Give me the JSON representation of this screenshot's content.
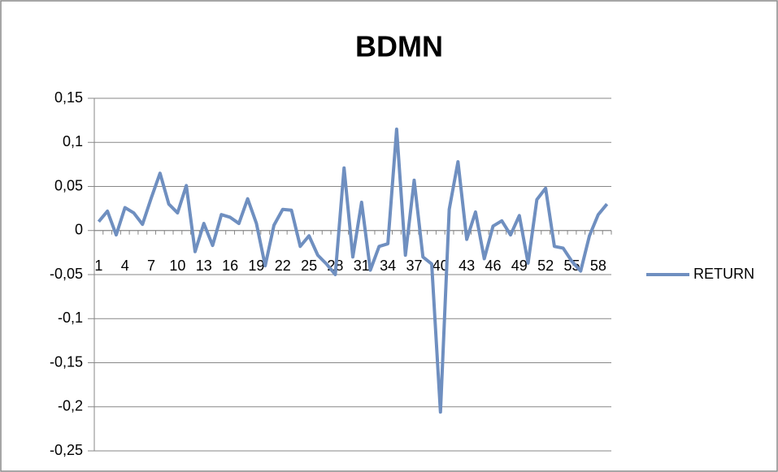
{
  "chart_data": {
    "type": "line",
    "title": "BDMN",
    "categories": [
      1,
      null,
      null,
      4,
      null,
      null,
      7,
      null,
      null,
      10,
      null,
      null,
      13,
      null,
      null,
      16,
      null,
      null,
      19,
      null,
      null,
      22,
      null,
      null,
      25,
      null,
      null,
      28,
      null,
      null,
      31,
      null,
      null,
      34,
      null,
      null,
      37,
      null,
      null,
      40,
      null,
      null,
      43,
      null,
      null,
      46,
      null,
      null,
      49,
      null,
      null,
      52,
      null,
      null,
      55,
      null,
      null,
      58,
      null
    ],
    "series": [
      {
        "name": "RETURN",
        "color": "#6f8fc0",
        "values": [
          0.01,
          0.022,
          -0.005,
          0.026,
          0.02,
          0.007,
          0.037,
          0.065,
          0.03,
          0.02,
          0.051,
          -0.024,
          0.008,
          -0.017,
          0.018,
          0.015,
          0.008,
          0.036,
          0.008,
          -0.04,
          0.006,
          0.024,
          0.023,
          -0.018,
          -0.006,
          -0.028,
          -0.038,
          -0.05,
          0.071,
          -0.03,
          0.032,
          -0.045,
          -0.018,
          -0.015,
          0.115,
          -0.028,
          0.057,
          -0.03,
          -0.038,
          -0.206,
          0.024,
          0.078,
          -0.01,
          0.021,
          -0.032,
          0.005,
          0.011,
          -0.005,
          0.017,
          -0.037,
          0.035,
          0.048,
          -0.018,
          -0.02,
          -0.035,
          -0.046,
          -0.006,
          0.018,
          0.03
        ]
      }
    ],
    "ylim": [
      -0.25,
      0.15
    ],
    "yticks": [
      {
        "value": -0.25,
        "label": "-0,25"
      },
      {
        "value": -0.2,
        "label": "-0,2"
      },
      {
        "value": -0.15,
        "label": "-0,15"
      },
      {
        "value": -0.1,
        "label": "-0,1"
      },
      {
        "value": -0.05,
        "label": "-0,05"
      },
      0,
      {
        "value": 0.05,
        "label": "0,05"
      },
      {
        "value": 0.1,
        "label": "0,1"
      },
      {
        "value": 0.15,
        "label": "0,15"
      }
    ],
    "grid": true,
    "legend": "right"
  }
}
